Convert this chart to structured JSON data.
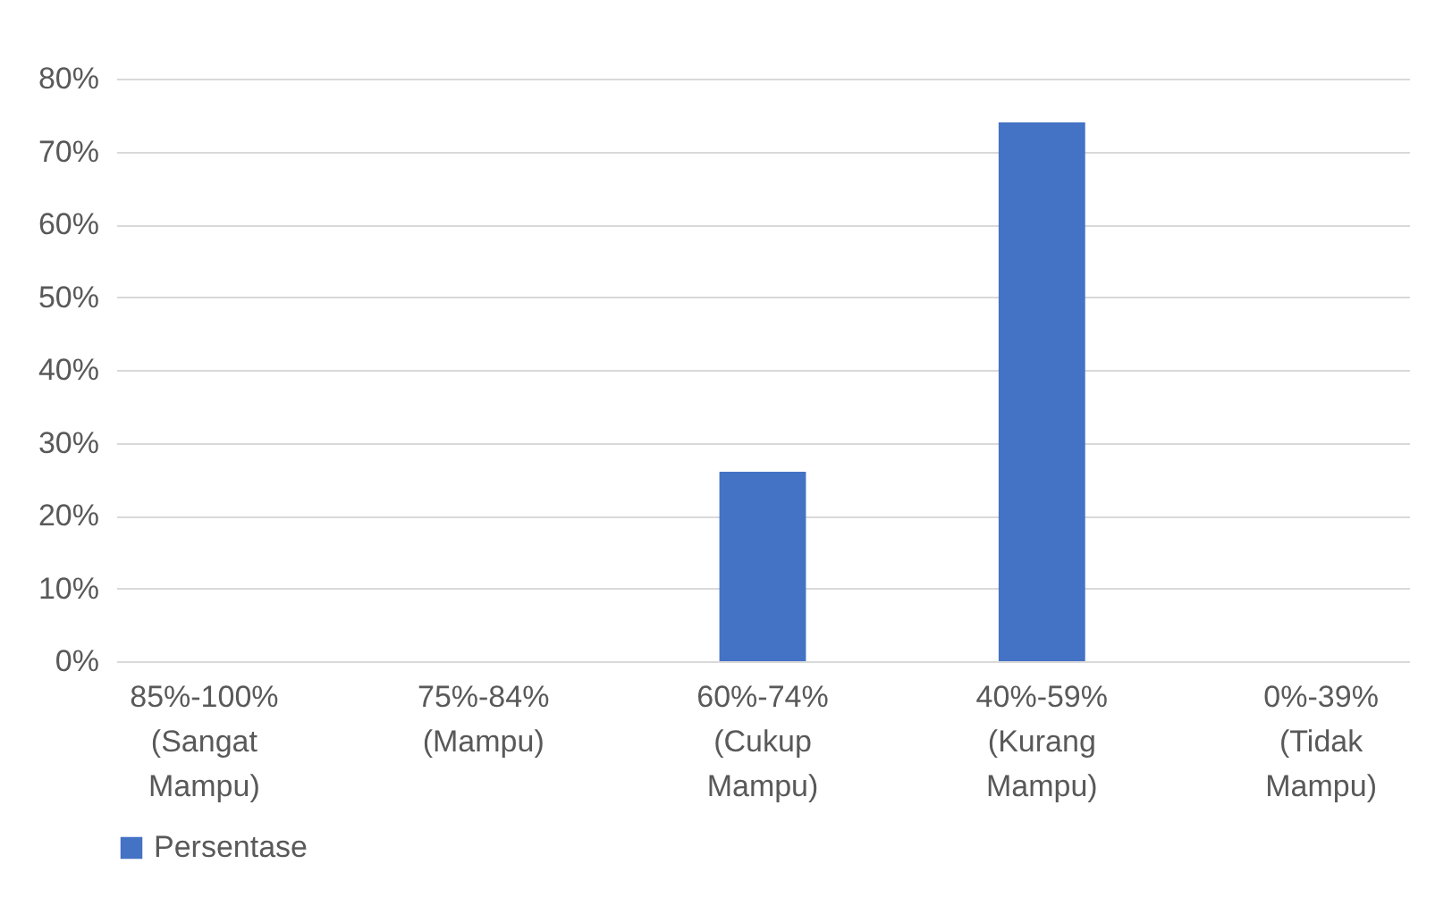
{
  "chart_data": {
    "type": "bar",
    "categories": [
      "85%-100% (Sangat Mampu)",
      "75%-84% (Mampu)",
      "60%-74% (Cukup Mampu)",
      "40%-59% (Kurang Mampu)",
      "0%-39% (Tidak Mampu)"
    ],
    "series": [
      {
        "name": "Persentase",
        "color": "#4472c4",
        "values": [
          0,
          0,
          26,
          74,
          0
        ]
      }
    ],
    "ylim": [
      0,
      80
    ],
    "yticks": [
      {
        "value": 0,
        "label": "0%"
      },
      {
        "value": 10,
        "label": "10%"
      },
      {
        "value": 20,
        "label": "20%"
      },
      {
        "value": 30,
        "label": "30%"
      },
      {
        "value": 40,
        "label": "40%"
      },
      {
        "value": 50,
        "label": "50%"
      },
      {
        "value": 60,
        "label": "60%"
      },
      {
        "value": 70,
        "label": "70%"
      },
      {
        "value": 80,
        "label": "80%"
      }
    ],
    "grid": "y",
    "legend": "bottom"
  }
}
